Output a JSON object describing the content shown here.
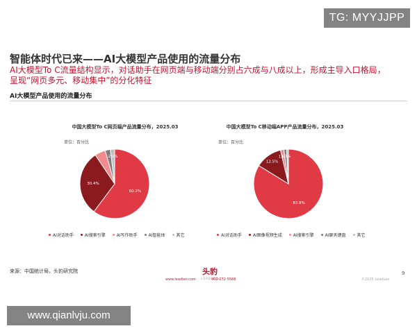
{
  "watermarks": {
    "top": "TG: MYYJJPP",
    "bottom": "www.qianlvju.com"
  },
  "headline": "智能体时代已来——AI大模型产品使用的流量分布",
  "summary_line1": "AI大模型To  C流量结构显示，对话助手在网页端与移动端分别占六成与八成以上，形成主导入口格局，",
  "summary_line2": "呈现“网页多元、移动集中”的分化特征",
  "section_title": "AI大模型产品使用的流量分布",
  "colors": {
    "accent": "#c8102e",
    "slices": [
      "#e03a45",
      "#8b1a1f",
      "#f28a8f",
      "#7d7d7d",
      "#bfbfbf"
    ]
  },
  "chart_data": [
    {
      "type": "pie",
      "title": "中国大模型To C网页端产品流量分布，2025.03",
      "unit": "单位：百分比",
      "categories": [
        "AI对话助手",
        "AI搜索引擎",
        "AI写作助手",
        "AI智能体",
        "其它"
      ],
      "values": [
        60.2,
        30.4,
        5.0,
        2.4,
        2.0
      ],
      "data_labels": [
        "60.2%",
        "30.4%",
        "",
        "",
        "2.0%"
      ],
      "legend": "bottom"
    },
    {
      "type": "pie",
      "title": "中国大模型To C移动端APP产品流量分布，2025.03",
      "unit": "单位：百分比",
      "categories": [
        "AI对话助手",
        "AI图像视频生成",
        "AI搜索引擎",
        "AI聊天键盘",
        "其它"
      ],
      "values": [
        83.8,
        12.5,
        1.6,
        1.3,
        0.8
      ],
      "data_labels": [
        "83.8%",
        "12.5%",
        "1.6%",
        "1.3%",
        ""
      ],
      "legend": "bottom"
    }
  ],
  "source": "来源：中国统计局，头豹研究院",
  "page_number": "9",
  "logo": {
    "name": "头豹",
    "sub": "LEADLEO"
  },
  "footer": {
    "website": "www.leadleo.com",
    "phone": "400-072-5588",
    "copyright": "©2025 LeadLeo"
  }
}
